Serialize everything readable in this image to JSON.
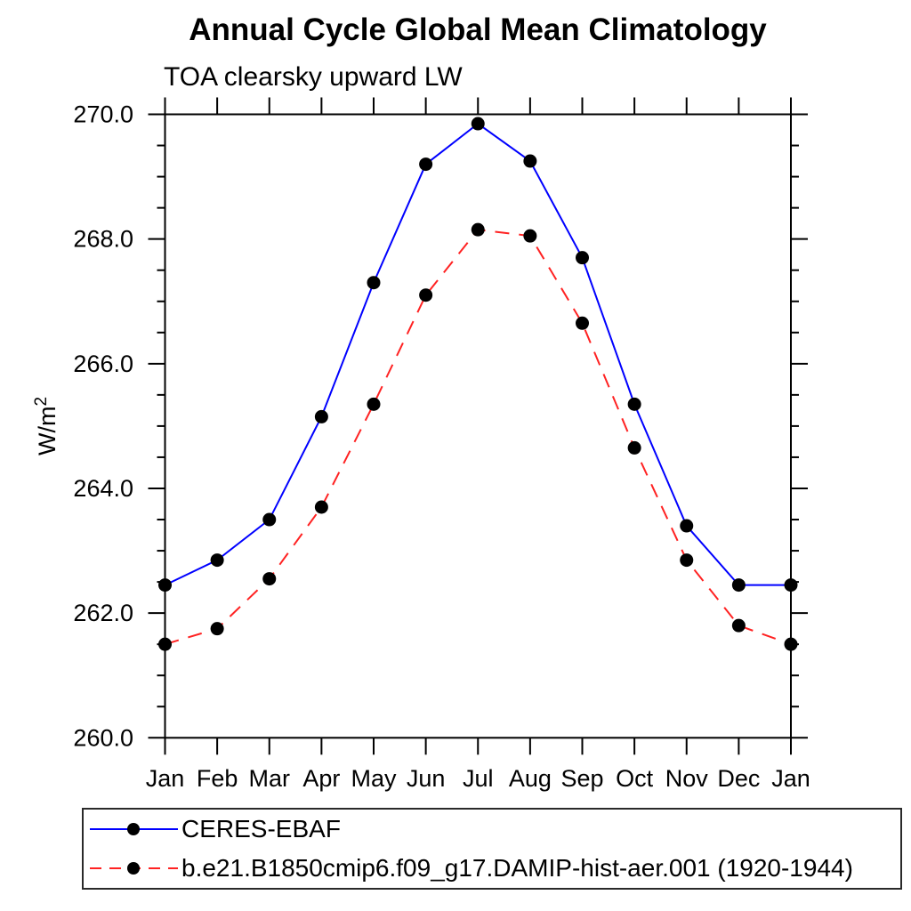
{
  "page": {
    "background": "#ffffff"
  },
  "chart_data": {
    "type": "line",
    "title": "Annual Cycle Global Mean Climatology",
    "subtitle": "TOA clearsky upward LW",
    "ylabel_base": "W/m",
    "ylabel_superscript": "2",
    "x_categories": [
      "Jan",
      "Feb",
      "Mar",
      "Apr",
      "May",
      "Jun",
      "Jul",
      "Aug",
      "Sep",
      "Oct",
      "Nov",
      "Dec",
      "Jan"
    ],
    "ylim": [
      260.0,
      270.0
    ],
    "y_major_ticks": [
      260.0,
      262.0,
      264.0,
      266.0,
      268.0,
      270.0
    ],
    "y_tick_labels": [
      "260.0",
      "262.0",
      "264.0",
      "266.0",
      "268.0",
      "270.0"
    ],
    "y_minor_interval": 0.5,
    "grid": false,
    "frame": "box-with-outward-ticks",
    "legend_position": "bottom-left-box",
    "axis_color": "#000000",
    "marker_color": "#000000",
    "series": [
      {
        "name": "CERES-EBAF",
        "color": "#0000ff",
        "style": "solid",
        "marker": "filled-circle",
        "values": [
          262.45,
          262.85,
          263.5,
          265.15,
          267.3,
          269.2,
          269.85,
          269.25,
          267.7,
          265.35,
          263.4,
          262.45,
          262.45
        ]
      },
      {
        "name": "b.e21.B1850cmip6.f09_g17.DAMIP-hist-aer.001 (1920-1944)",
        "color": "#ff2222",
        "style": "dashed",
        "marker": "filled-circle",
        "values": [
          261.5,
          261.75,
          262.55,
          263.7,
          265.35,
          267.1,
          268.15,
          268.05,
          266.65,
          264.65,
          262.85,
          261.8,
          261.5
        ]
      }
    ]
  }
}
